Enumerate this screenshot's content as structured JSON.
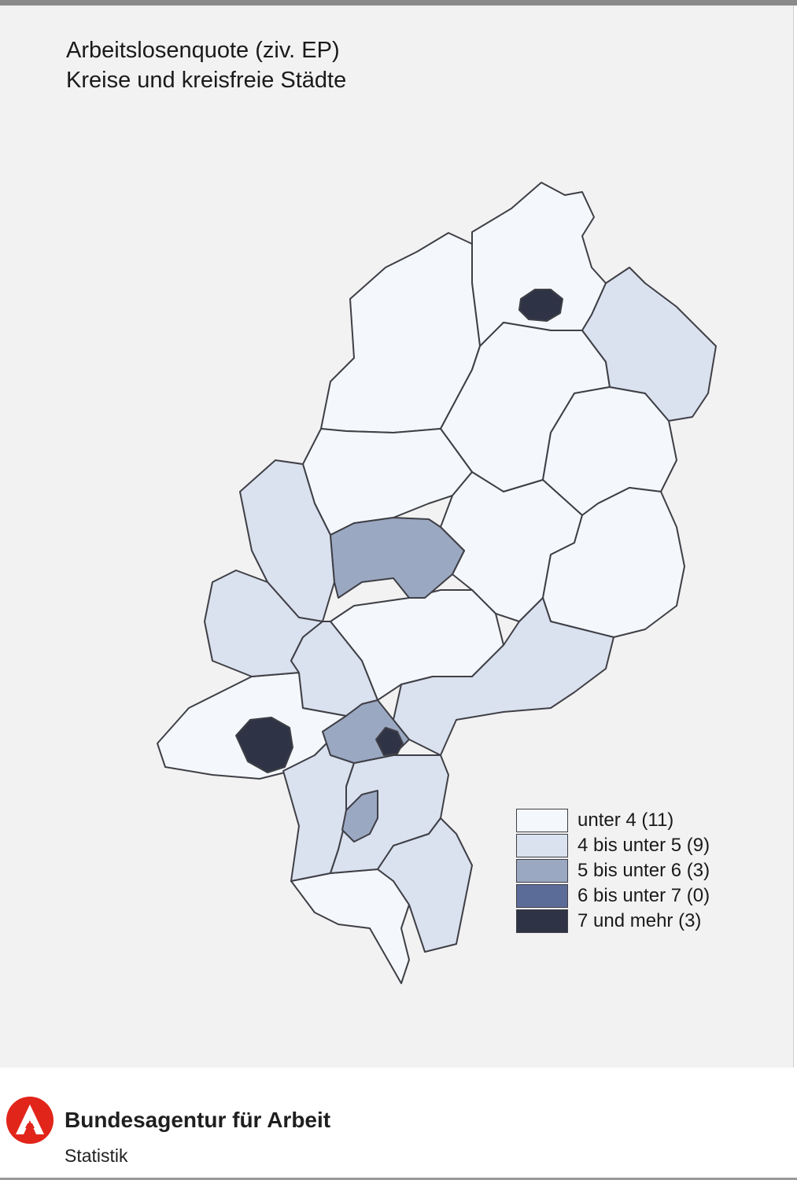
{
  "title": {
    "line1": "Arbeitslosenquote (ziv. EP)",
    "line2": "Kreise und kreisfreie Städte"
  },
  "colors": {
    "class1": "#f4f8fd",
    "class2": "#dae1ef",
    "class3": "#9ba8c2",
    "class4": "#5c6c98",
    "class5": "#2e3446",
    "border": "#3f3f46",
    "background": "#f2f2f2",
    "logo": "#e2251b"
  },
  "legend": [
    {
      "label": "unter 4 (11)",
      "color": "#f4f8fd"
    },
    {
      "label": "4 bis unter 5 (9)",
      "color": "#dae1ef"
    },
    {
      "label": "5 bis unter 6 (3)",
      "color": "#9ba8c2"
    },
    {
      "label": "6 bis unter 7 (0)",
      "color": "#5c6c98"
    },
    {
      "label": "7 und mehr (3)",
      "color": "#2e3446"
    }
  ],
  "footer": {
    "brand": "Bundesagentur für Arbeit",
    "subtitle": "Statistik",
    "logo_icon": "ba-logo-icon"
  }
}
